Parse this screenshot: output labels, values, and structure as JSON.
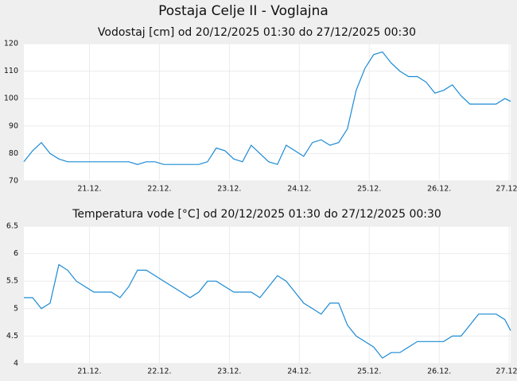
{
  "title": "Postaja Celje II - Voglajna",
  "chart_data": [
    {
      "type": "line",
      "title": "Vodostaj [cm] od 20/12/2025 01:30 do 27/12/2025 00:30",
      "color": "#1a8ad4",
      "grid": true,
      "x": [
        "2025-12-20T01:30",
        "2025-12-20T04:30",
        "2025-12-20T07:30",
        "2025-12-20T10:30",
        "2025-12-20T13:30",
        "2025-12-20T16:30",
        "2025-12-20T19:30",
        "2025-12-20T22:30",
        "2025-12-21T01:30",
        "2025-12-21T04:30",
        "2025-12-21T07:30",
        "2025-12-21T10:30",
        "2025-12-21T13:30",
        "2025-12-21T16:30",
        "2025-12-21T19:30",
        "2025-12-21T22:30",
        "2025-12-22T01:30",
        "2025-12-22T04:30",
        "2025-12-22T07:30",
        "2025-12-22T10:30",
        "2025-12-22T13:30",
        "2025-12-22T16:30",
        "2025-12-22T19:30",
        "2025-12-22T22:30",
        "2025-12-23T01:30",
        "2025-12-23T04:30",
        "2025-12-23T07:30",
        "2025-12-23T10:30",
        "2025-12-23T13:30",
        "2025-12-23T16:30",
        "2025-12-23T19:30",
        "2025-12-23T22:30",
        "2025-12-24T01:30",
        "2025-12-24T04:30",
        "2025-12-24T07:30",
        "2025-12-24T10:30",
        "2025-12-24T13:30",
        "2025-12-24T16:30",
        "2025-12-24T19:30",
        "2025-12-24T22:30",
        "2025-12-25T01:30",
        "2025-12-25T04:30",
        "2025-12-25T07:30",
        "2025-12-25T10:30",
        "2025-12-25T13:30",
        "2025-12-25T16:30",
        "2025-12-25T19:30",
        "2025-12-25T22:30",
        "2025-12-26T01:30",
        "2025-12-26T04:30",
        "2025-12-26T07:30",
        "2025-12-26T10:30",
        "2025-12-26T13:30",
        "2025-12-26T16:30",
        "2025-12-26T19:30",
        "2025-12-26T22:30",
        "2025-12-27T00:30"
      ],
      "values": [
        77,
        81,
        84,
        80,
        78,
        77,
        77,
        77,
        77,
        77,
        77,
        77,
        77,
        76,
        77,
        77,
        76,
        76,
        76,
        76,
        76,
        77,
        82,
        81,
        78,
        77,
        83,
        80,
        77,
        76,
        83,
        81,
        79,
        84,
        85,
        83,
        84,
        89,
        103,
        111,
        116,
        117,
        113,
        110,
        108,
        108,
        106,
        102,
        103,
        105,
        101,
        98,
        98,
        98,
        98,
        100,
        99
      ],
      "xlim": [
        "2025-12-20T01:30",
        "2025-12-27T00:30"
      ],
      "xticks": [
        {
          "value": "2025-12-21T00:00",
          "label": "21.12."
        },
        {
          "value": "2025-12-22T00:00",
          "label": "22.12."
        },
        {
          "value": "2025-12-23T00:00",
          "label": "23.12."
        },
        {
          "value": "2025-12-24T00:00",
          "label": "24.12."
        },
        {
          "value": "2025-12-25T00:00",
          "label": "25.12."
        },
        {
          "value": "2025-12-26T00:00",
          "label": "26.12."
        },
        {
          "value": "2025-12-27T00:00",
          "label": "27.12"
        }
      ],
      "ylim": [
        70,
        120
      ],
      "yticks": [
        70,
        80,
        90,
        100,
        110,
        120
      ]
    },
    {
      "type": "line",
      "title": "Temperatura vode [°C] od 20/12/2025 01:30 do 27/12/2025 00:30",
      "color": "#1a8ad4",
      "grid": true,
      "x": [
        "2025-12-20T01:30",
        "2025-12-20T04:30",
        "2025-12-20T07:30",
        "2025-12-20T10:30",
        "2025-12-20T13:30",
        "2025-12-20T16:30",
        "2025-12-20T19:30",
        "2025-12-20T22:30",
        "2025-12-21T01:30",
        "2025-12-21T04:30",
        "2025-12-21T07:30",
        "2025-12-21T10:30",
        "2025-12-21T13:30",
        "2025-12-21T16:30",
        "2025-12-21T19:30",
        "2025-12-21T22:30",
        "2025-12-22T01:30",
        "2025-12-22T04:30",
        "2025-12-22T07:30",
        "2025-12-22T10:30",
        "2025-12-22T13:30",
        "2025-12-22T16:30",
        "2025-12-22T19:30",
        "2025-12-22T22:30",
        "2025-12-23T01:30",
        "2025-12-23T04:30",
        "2025-12-23T07:30",
        "2025-12-23T10:30",
        "2025-12-23T13:30",
        "2025-12-23T16:30",
        "2025-12-23T19:30",
        "2025-12-23T22:30",
        "2025-12-24T01:30",
        "2025-12-24T04:30",
        "2025-12-24T07:30",
        "2025-12-24T10:30",
        "2025-12-24T13:30",
        "2025-12-24T16:30",
        "2025-12-24T19:30",
        "2025-12-24T22:30",
        "2025-12-25T01:30",
        "2025-12-25T04:30",
        "2025-12-25T07:30",
        "2025-12-25T10:30",
        "2025-12-25T13:30",
        "2025-12-25T16:30",
        "2025-12-25T19:30",
        "2025-12-25T22:30",
        "2025-12-26T01:30",
        "2025-12-26T04:30",
        "2025-12-26T07:30",
        "2025-12-26T10:30",
        "2025-12-26T13:30",
        "2025-12-26T16:30",
        "2025-12-26T19:30",
        "2025-12-26T22:30",
        "2025-12-27T00:30"
      ],
      "values": [
        5.2,
        5.2,
        5.0,
        5.1,
        5.8,
        5.7,
        5.5,
        5.4,
        5.3,
        5.3,
        5.3,
        5.2,
        5.4,
        5.7,
        5.7,
        5.6,
        5.5,
        5.4,
        5.3,
        5.2,
        5.3,
        5.5,
        5.5,
        5.4,
        5.3,
        5.3,
        5.3,
        5.2,
        5.4,
        5.6,
        5.5,
        5.3,
        5.1,
        5.0,
        4.9,
        5.1,
        5.1,
        4.7,
        4.5,
        4.4,
        4.3,
        4.1,
        4.2,
        4.2,
        4.3,
        4.4,
        4.4,
        4.4,
        4.4,
        4.5,
        4.5,
        4.7,
        4.9,
        4.9,
        4.9,
        4.8,
        4.6
      ],
      "xlim": [
        "2025-12-20T01:30",
        "2025-12-27T00:30"
      ],
      "xticks": [
        {
          "value": "2025-12-21T00:00",
          "label": "21.12."
        },
        {
          "value": "2025-12-22T00:00",
          "label": "22.12."
        },
        {
          "value": "2025-12-23T00:00",
          "label": "23.12."
        },
        {
          "value": "2025-12-24T00:00",
          "label": "24.12."
        },
        {
          "value": "2025-12-25T00:00",
          "label": "25.12."
        },
        {
          "value": "2025-12-26T00:00",
          "label": "26.12."
        },
        {
          "value": "2025-12-27T00:00",
          "label": "27.12"
        }
      ],
      "ylim": [
        4,
        6.5
      ],
      "yticks": [
        4,
        4.5,
        5,
        5.5,
        6,
        6.5
      ]
    }
  ]
}
